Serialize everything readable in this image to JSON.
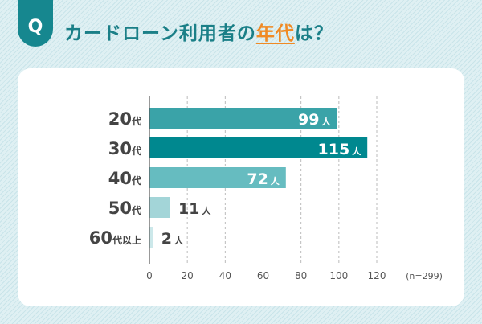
{
  "header": {
    "badge": "Q",
    "title_before": "カードローン利用者の",
    "title_highlight": "年代",
    "title_after": "は？"
  },
  "chart_data": {
    "type": "bar",
    "orientation": "horizontal",
    "title": "カードローン利用者の年代は？",
    "categories": [
      "20代",
      "30代",
      "40代",
      "50代",
      "60代以上"
    ],
    "values": [
      99,
      115,
      72,
      11,
      2
    ],
    "value_unit": "人",
    "colors": [
      "#3aa3a8",
      "#00888f",
      "#66bcc0",
      "#a3d5d8",
      "#cce8ea"
    ],
    "xlim": [
      0,
      120
    ],
    "xticks": [
      0,
      20,
      40,
      60,
      80,
      100,
      120
    ],
    "grid": true,
    "note": "(n=299)"
  }
}
